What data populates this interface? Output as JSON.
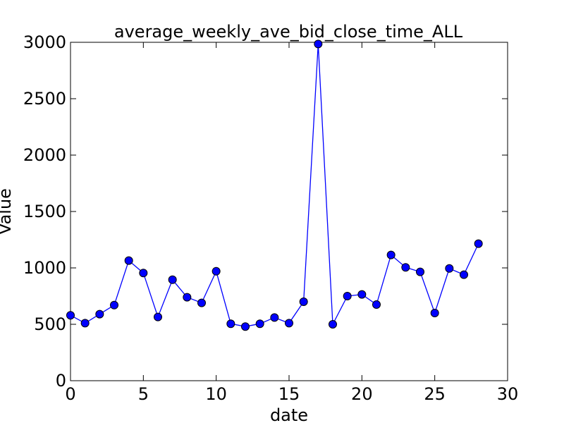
{
  "chart_data": {
    "type": "line",
    "title": "average_weekly_ave_bid_close_time_ALL",
    "xlabel": "date",
    "ylabel": "Value",
    "xlim": [
      0,
      30
    ],
    "ylim": [
      0,
      3000
    ],
    "xticks": [
      "0",
      "5",
      "10",
      "15",
      "20",
      "25",
      "30"
    ],
    "yticks": [
      "0",
      "500",
      "1000",
      "1500",
      "2000",
      "2500",
      "3000"
    ],
    "grid": false,
    "line_color": "#0000ff",
    "marker_color": "#0000ff",
    "series": [
      {
        "x": [
          0,
          1,
          2,
          3,
          4,
          5,
          6,
          7,
          8,
          9,
          10,
          11,
          12,
          13,
          14,
          15,
          16,
          17,
          18,
          19,
          20,
          21,
          22,
          23,
          24,
          25,
          26,
          27,
          28
        ],
        "values": [
          580,
          510,
          590,
          670,
          1065,
          955,
          565,
          895,
          740,
          690,
          970,
          505,
          480,
          505,
          560,
          510,
          700,
          2985,
          500,
          750,
          765,
          675,
          1115,
          1005,
          965,
          600,
          995,
          940,
          1215
        ]
      }
    ]
  }
}
